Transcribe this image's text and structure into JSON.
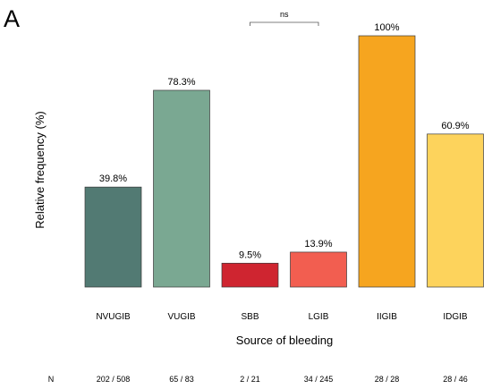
{
  "panel_label": "A",
  "chart_data": {
    "type": "bar",
    "title": "",
    "xlabel": "Source of bleeding",
    "ylabel": "Relative frequency (%)",
    "ylim": [
      0,
      100
    ],
    "grid": false,
    "categories": [
      "NVUGIB",
      "VUGIB",
      "SBB",
      "LGIB",
      "IIGIB",
      "IDGIB"
    ],
    "values": [
      39.8,
      78.3,
      9.5,
      13.9,
      100,
      60.9
    ],
    "value_labels": [
      "39.8%",
      "78.3%",
      "9.5%",
      "13.9%",
      "100%",
      "60.9%"
    ],
    "colors": [
      "#527a73",
      "#7aa892",
      "#cf2530",
      "#f25e50",
      "#f6a51f",
      "#fdd35c"
    ],
    "n_header": "N",
    "n_values": [
      "202 / 508",
      "65 / 83",
      "2 / 21",
      "34 / 245",
      "28 / 28",
      "28 / 46"
    ],
    "significance": {
      "from": "SBB",
      "to": "LGIB",
      "label": "ns"
    }
  }
}
